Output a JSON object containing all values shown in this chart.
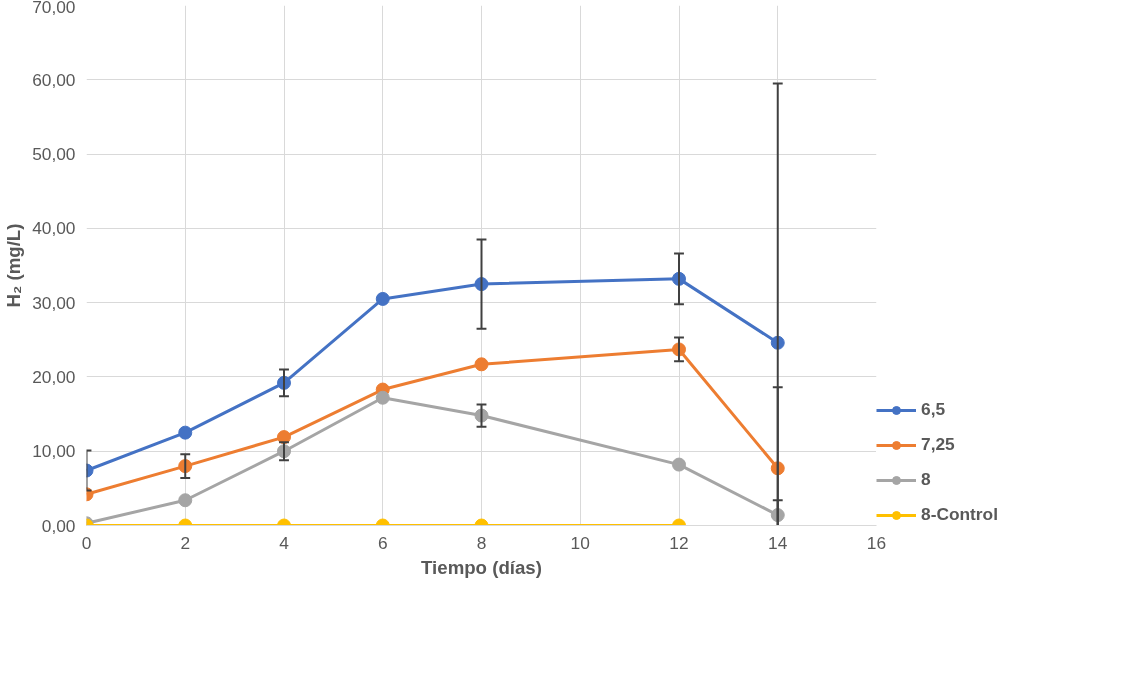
{
  "chart_data": {
    "type": "line",
    "xlabel": "Tiempo (días)",
    "ylabel": "H₂ (mg/L)",
    "x": [
      0,
      2,
      4,
      6,
      8,
      12,
      14
    ],
    "series": [
      {
        "name": "6,5",
        "color": "#4472c4",
        "values": [
          7.4,
          12.5,
          19.2,
          30.5,
          32.5,
          33.2,
          24.6
        ],
        "errors": [
          2.7,
          null,
          1.8,
          null,
          6.0,
          3.4,
          [
            0,
            59.5
          ]
        ]
      },
      {
        "name": "7,25",
        "color": "#ed7d31",
        "values": [
          4.2,
          8.0,
          11.9,
          18.3,
          21.7,
          23.7,
          7.7
        ],
        "errors": [
          null,
          1.6,
          null,
          null,
          null,
          1.6,
          [
            0,
            18.6
          ]
        ]
      },
      {
        "name": "8",
        "color": "#a5a5a5",
        "values": [
          0.3,
          3.4,
          10.0,
          17.2,
          14.8,
          8.2,
          1.4
        ],
        "errors": [
          null,
          null,
          1.2,
          null,
          1.5,
          null,
          [
            0,
            3.4
          ]
        ]
      },
      {
        "name": "8-Control",
        "color": "#ffc000",
        "values": [
          0,
          0,
          0,
          0,
          0,
          0,
          null
        ]
      }
    ],
    "xlim": [
      0,
      16
    ],
    "xticks": [
      0,
      2,
      4,
      6,
      8,
      10,
      12,
      14,
      16
    ],
    "ylim": [
      0,
      70
    ],
    "yticks": [
      {
        "value": 0,
        "label": "0,00"
      },
      {
        "value": 10,
        "label": "10,00"
      },
      {
        "value": 20,
        "label": "20,00"
      },
      {
        "value": 30,
        "label": "30,00"
      },
      {
        "value": 40,
        "label": "40,00"
      },
      {
        "value": 50,
        "label": "50,00"
      },
      {
        "value": 60,
        "label": "60,00"
      },
      {
        "value": 70,
        "label": "70,00"
      }
    ],
    "grid": true,
    "legend": "right",
    "marker": "circle",
    "line_style": "solid"
  }
}
